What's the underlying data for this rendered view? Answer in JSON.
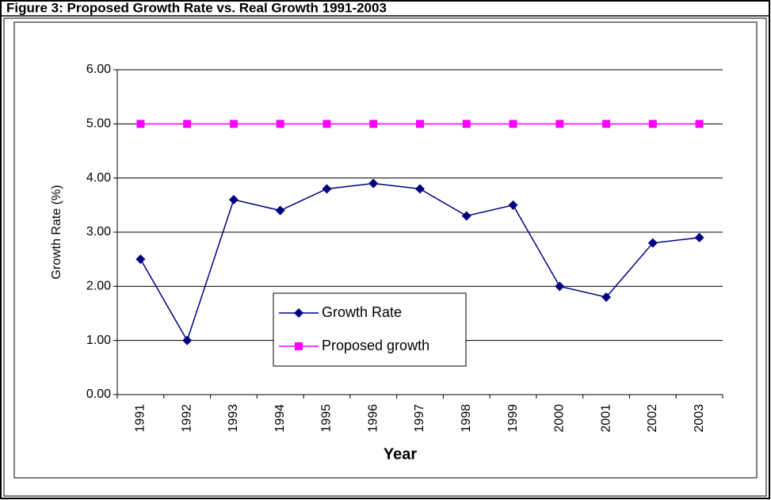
{
  "chart_data": {
    "type": "line",
    "title": "Figure 3: Proposed Growth Rate vs. Real Growth 1991-2003",
    "x_label": "Year",
    "y_label": "Growth Rate (%)",
    "categories": [
      "1991",
      "1992",
      "1993",
      "1994",
      "1995",
      "1996",
      "1997",
      "1998",
      "1999",
      "2000",
      "2001",
      "2002",
      "2003"
    ],
    "series": [
      {
        "name": "Growth Rate",
        "color": "#000080",
        "marker": "diamond",
        "values": [
          2.5,
          1.0,
          3.6,
          3.4,
          3.8,
          3.9,
          3.8,
          3.3,
          3.5,
          2.0,
          1.8,
          2.8,
          2.9
        ]
      },
      {
        "name": "Proposed growth",
        "color": "#ff00ff",
        "marker": "square",
        "values": [
          5,
          5,
          5,
          5,
          5,
          5,
          5,
          5,
          5,
          5,
          5,
          5,
          5
        ]
      }
    ],
    "ylim": [
      0,
      6
    ],
    "yticks": [
      {
        "value": 0,
        "label": "0.00"
      },
      {
        "value": 1,
        "label": "1.00"
      },
      {
        "value": 2,
        "label": "2.00"
      },
      {
        "value": 3,
        "label": "3.00"
      },
      {
        "value": 4,
        "label": "4.00"
      },
      {
        "value": 5,
        "label": "5.00"
      },
      {
        "value": 6,
        "label": "6.00"
      }
    ],
    "grid": true
  }
}
